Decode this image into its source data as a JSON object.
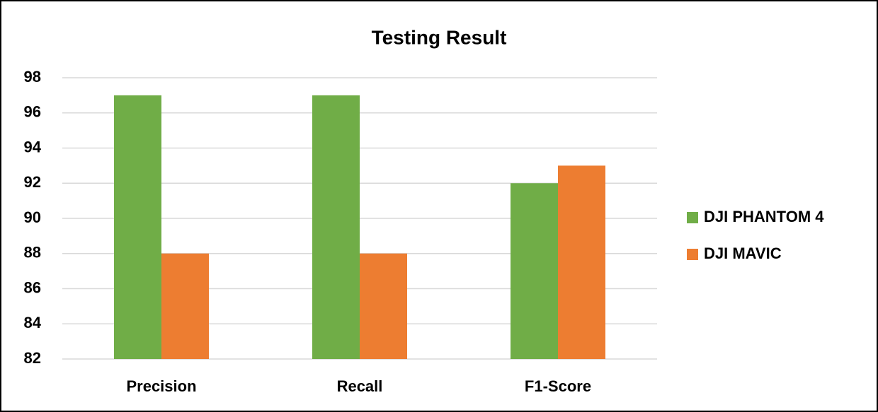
{
  "chart_data": {
    "type": "bar",
    "title": "Testing Result",
    "categories": [
      "Precision",
      "Recall",
      "F1-Score"
    ],
    "series": [
      {
        "name": "DJI PHANTOM 4",
        "color": "#70ad47",
        "values": [
          97,
          97,
          92
        ]
      },
      {
        "name": "DJI MAVIC",
        "color": "#ed7d31",
        "values": [
          88,
          88,
          93
        ]
      }
    ],
    "ylim": [
      82,
      98
    ],
    "yticks": [
      82,
      84,
      86,
      88,
      90,
      92,
      94,
      96,
      98
    ],
    "grid": true,
    "legend": "right"
  }
}
